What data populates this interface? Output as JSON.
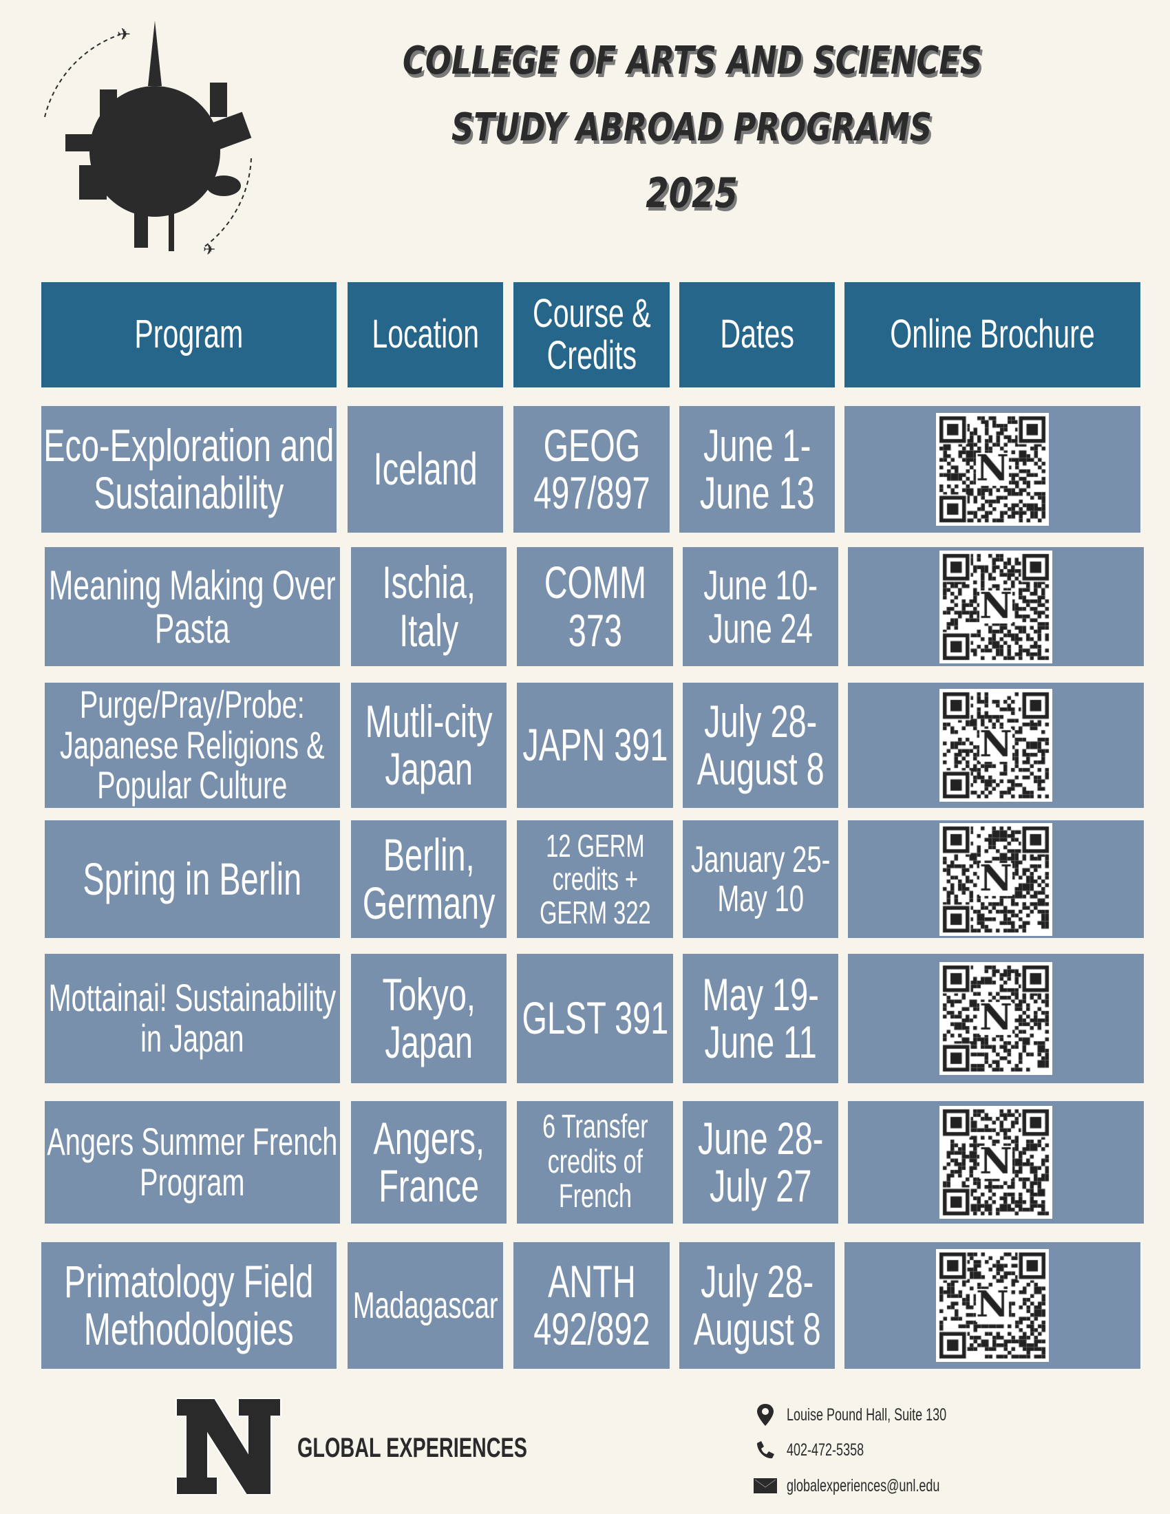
{
  "header": {
    "line1": "COLLEGE OF ARTS AND SCIENCES",
    "line2": "STUDY ABROAD PROGRAMS",
    "line3": "2025"
  },
  "colors": {
    "header_bg": "#27668b",
    "cell_bg": "#7890ab",
    "page_bg": "#f7f4ec"
  },
  "table": {
    "columns": [
      "Program",
      "Location",
      "Course & Credits",
      "Dates",
      "Online Brochure"
    ],
    "rows": [
      {
        "program": "Eco-Exploration and Sustainability",
        "location": "Iceland",
        "course": "GEOG 497/897",
        "dates": "June 1- June 13",
        "brochure": "qr-code"
      },
      {
        "program": "Meaning Making Over Pasta",
        "location": "Ischia, Italy",
        "course": "COMM 373",
        "dates": "June 10- June 24",
        "brochure": "qr-code"
      },
      {
        "program": "Purge/Pray/Probe: Japanese Religions & Popular Culture",
        "location": "Mutli-city Japan",
        "course": "JAPN 391",
        "dates": "July 28- August 8",
        "brochure": "qr-code"
      },
      {
        "program": "Spring in Berlin",
        "location": "Berlin, Germany",
        "course": "12 GERM credits + GERM 322",
        "dates": "January 25- May 10",
        "brochure": "qr-code"
      },
      {
        "program": "Mottainai! Sustainability in Japan",
        "location": "Tokyo, Japan",
        "course": "GLST 391",
        "dates": "May 19- June 11",
        "brochure": "qr-code"
      },
      {
        "program": "Angers Summer French Program",
        "location": "Angers, France",
        "course": "6 Transfer credits of French",
        "dates": "June 28- July 27",
        "brochure": "qr-code"
      },
      {
        "program": "Primatology Field Methodologies",
        "location": "Madagascar",
        "course": "ANTH 492/892",
        "dates": "July 28- August 8",
        "brochure": "qr-code"
      }
    ]
  },
  "footer": {
    "logo_letter": "N",
    "brand": "GLOBAL EXPERIENCES",
    "address": "Louise Pound Hall, Suite 130",
    "phone": "402-472-5358",
    "email": "globalexperiences@unl.edu"
  }
}
